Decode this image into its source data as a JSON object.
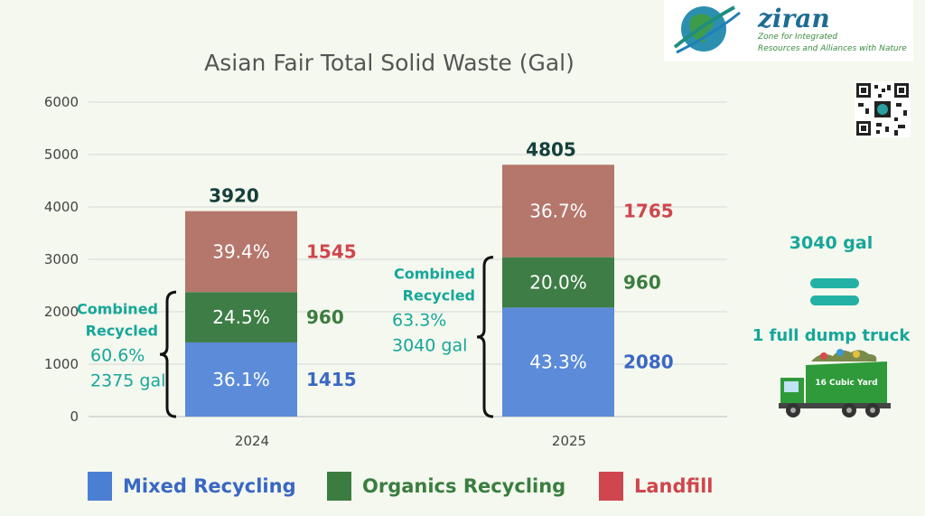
{
  "chart_data": {
    "type": "bar",
    "stacked": true,
    "title": "Asian Fair Total Solid Waste (Gal)",
    "categories": [
      "2024",
      "2025"
    ],
    "ylim": [
      0,
      6000
    ],
    "yticks": [
      "0",
      "1000",
      "2000",
      "3000",
      "4000",
      "5000",
      "6000"
    ],
    "grid": true,
    "legend_position": "bottom",
    "series": [
      {
        "name": "Mixed Recycling",
        "color": "#5b8bd9",
        "label_color": "#3a67c4",
        "values": [
          1415,
          2080
        ],
        "percent_labels": [
          "36.1%",
          "43.3%"
        ],
        "value_labels": [
          "1415",
          "2080"
        ]
      },
      {
        "name": "Organics Recycling",
        "color": "#3e7d45",
        "label_color": "#3b7d40",
        "values": [
          960,
          960
        ],
        "percent_labels": [
          "24.5%",
          "20.0%"
        ],
        "value_labels": [
          "960",
          "960"
        ]
      },
      {
        "name": "Landfill",
        "color": "#b5766c",
        "label_color": "#d0464e",
        "values": [
          1545,
          1765
        ],
        "percent_labels": [
          "39.4%",
          "36.7%"
        ],
        "value_labels": [
          "1545",
          "1765"
        ]
      }
    ],
    "totals": [
      "3920",
      "4805"
    ],
    "combined": [
      {
        "title_line1": "Combined",
        "title_line2": "Recycled",
        "percent": "60.6%",
        "gallons": "2375 gal"
      },
      {
        "title_line1": "Combined",
        "title_line2": "Recycled",
        "percent": "63.3%",
        "gallons": "3040 gal"
      }
    ]
  },
  "side_panel": {
    "volume": "3040 gal",
    "equivalent": "1 full dump truck",
    "truck_label": "16 Cubic Yard"
  },
  "logo": {
    "name": "ziran",
    "tagline_line1": "Zone for Integrated",
    "tagline_line2": "Resources and Alliances with Nature"
  }
}
